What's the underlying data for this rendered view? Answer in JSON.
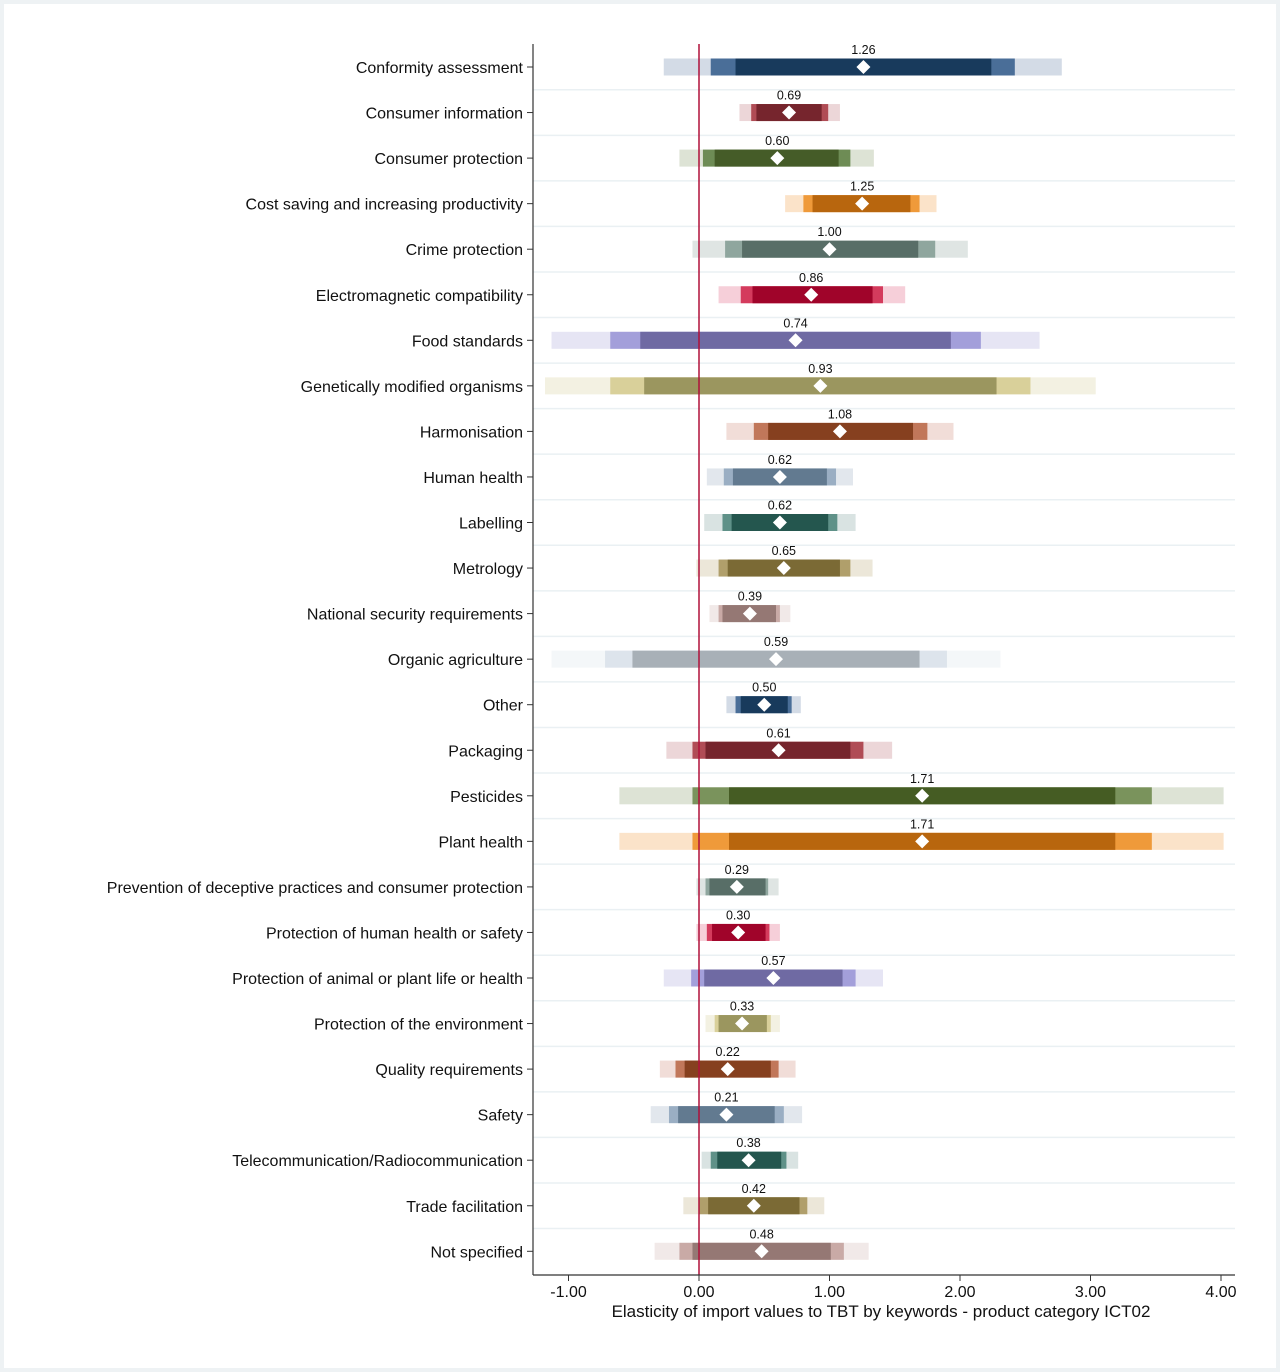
{
  "chart_data": {
    "type": "forest",
    "title": "",
    "xlabel": "Elasticity of import values to TBT by keywords - product category ICT02",
    "ylabel": "",
    "xlim": [
      -1.27,
      4.1
    ],
    "xticks": [
      -1,
      0,
      1,
      2,
      3,
      4
    ],
    "xtick_labels": [
      "-1.00",
      "0.00",
      "1.00",
      "2.00",
      "3.00",
      "4.00"
    ],
    "reference_line": 0,
    "grid": "horizontal",
    "legend": "none",
    "series": [
      {
        "name": "Conformity assessment",
        "estimate": 1.26,
        "label": "1.26",
        "ci_outer": [
          -0.27,
          2.78
        ],
        "ci_mid": [
          0.09,
          2.42
        ],
        "ci_inner": [
          0.28,
          2.24
        ],
        "colors": [
          "#d3dbe6",
          "#4a6e98",
          "#183a5c"
        ]
      },
      {
        "name": "Consumer information",
        "estimate": 0.69,
        "label": "0.69",
        "ci_outer": [
          0.31,
          1.08
        ],
        "ci_mid": [
          0.4,
          0.99
        ],
        "ci_inner": [
          0.44,
          0.94
        ],
        "colors": [
          "#ecd6d8",
          "#b04c55",
          "#76252d"
        ]
      },
      {
        "name": "Consumer protection",
        "estimate": 0.6,
        "label": "0.60",
        "ci_outer": [
          -0.15,
          1.34
        ],
        "ci_mid": [
          0.03,
          1.16
        ],
        "ci_inner": [
          0.12,
          1.07
        ],
        "colors": [
          "#dde3d5",
          "#6e8c55",
          "#455c28"
        ]
      },
      {
        "name": "Cost saving and increasing productivity",
        "estimate": 1.25,
        "label": "1.25",
        "ci_outer": [
          0.66,
          1.82
        ],
        "ci_mid": [
          0.8,
          1.69
        ],
        "ci_inner": [
          0.87,
          1.62
        ],
        "colors": [
          "#fbe3c9",
          "#ef9a3a",
          "#b8660e"
        ]
      },
      {
        "name": "Crime protection",
        "estimate": 1.0,
        "label": "1.00",
        "ci_outer": [
          -0.05,
          2.06
        ],
        "ci_mid": [
          0.2,
          1.81
        ],
        "ci_inner": [
          0.33,
          1.68
        ],
        "colors": [
          "#dfe5e3",
          "#8fa69e",
          "#586e67"
        ]
      },
      {
        "name": "Electromagnetic compatibility",
        "estimate": 0.86,
        "label": "0.86",
        "ci_outer": [
          0.15,
          1.58
        ],
        "ci_mid": [
          0.32,
          1.41
        ],
        "ci_inner": [
          0.41,
          1.33
        ],
        "colors": [
          "#f6cfd9",
          "#d43b5d",
          "#a0042a"
        ]
      },
      {
        "name": "Food standards",
        "estimate": 0.74,
        "label": "0.74",
        "ci_outer": [
          -1.13,
          2.61
        ],
        "ci_mid": [
          -0.68,
          2.16
        ],
        "ci_inner": [
          -0.45,
          1.93
        ],
        "colors": [
          "#e6e5f4",
          "#a39fda",
          "#6f6aa3"
        ]
      },
      {
        "name": "Genetically modified organisms",
        "estimate": 0.93,
        "label": "0.93",
        "ci_outer": [
          -1.18,
          3.04
        ],
        "ci_mid": [
          -0.68,
          2.54
        ],
        "ci_inner": [
          -0.42,
          2.28
        ],
        "colors": [
          "#f3f1e2",
          "#d9d09a",
          "#9b965f"
        ]
      },
      {
        "name": "Harmonisation",
        "estimate": 1.08,
        "label": "1.08",
        "ci_outer": [
          0.21,
          1.95
        ],
        "ci_mid": [
          0.42,
          1.75
        ],
        "ci_inner": [
          0.53,
          1.64
        ],
        "colors": [
          "#f1ddd8",
          "#c1775a",
          "#86401f"
        ]
      },
      {
        "name": "Human health",
        "estimate": 0.62,
        "label": "0.62",
        "ci_outer": [
          0.06,
          1.18
        ],
        "ci_mid": [
          0.19,
          1.05
        ],
        "ci_inner": [
          0.26,
          0.98
        ],
        "colors": [
          "#e2e7ed",
          "#9aaec3",
          "#627a90"
        ]
      },
      {
        "name": "Labelling",
        "estimate": 0.62,
        "label": "0.62",
        "ci_outer": [
          0.04,
          1.2
        ],
        "ci_mid": [
          0.18,
          1.06
        ],
        "ci_inner": [
          0.25,
          0.99
        ],
        "colors": [
          "#d9e3e2",
          "#5f9188",
          "#24564e"
        ]
      },
      {
        "name": "Metrology",
        "estimate": 0.65,
        "label": "0.65",
        "ci_outer": [
          -0.02,
          1.33
        ],
        "ci_mid": [
          0.15,
          1.16
        ],
        "ci_inner": [
          0.22,
          1.08
        ],
        "colors": [
          "#ece7d9",
          "#b09f6b",
          "#7b6a35"
        ]
      },
      {
        "name": "National security requirements",
        "estimate": 0.39,
        "label": "0.39",
        "ci_outer": [
          0.08,
          0.7
        ],
        "ci_mid": [
          0.15,
          0.62
        ],
        "ci_inner": [
          0.18,
          0.59
        ],
        "colors": [
          "#f1e9e8",
          "#c9aaa6",
          "#957874"
        ]
      },
      {
        "name": "Organic agriculture",
        "estimate": 0.59,
        "label": "0.59",
        "ci_outer": [
          -1.13,
          2.31
        ],
        "ci_mid": [
          -0.72,
          1.9
        ],
        "ci_inner": [
          -0.51,
          1.69
        ],
        "colors": [
          "#f4f7f9",
          "#dde4ec",
          "#a8b0b7"
        ]
      },
      {
        "name": "Other",
        "estimate": 0.5,
        "label": "0.50",
        "ci_outer": [
          0.21,
          0.78
        ],
        "ci_mid": [
          0.28,
          0.71
        ],
        "ci_inner": [
          0.32,
          0.68
        ],
        "colors": [
          "#d3dbe6",
          "#4a6e98",
          "#183a5c"
        ]
      },
      {
        "name": "Packaging",
        "estimate": 0.61,
        "label": "0.61",
        "ci_outer": [
          -0.25,
          1.48
        ],
        "ci_mid": [
          -0.05,
          1.26
        ],
        "ci_inner": [
          0.05,
          1.16
        ],
        "colors": [
          "#ecd6d8",
          "#b04c55",
          "#76252d"
        ]
      },
      {
        "name": "Pesticides",
        "estimate": 1.71,
        "label": "1.71",
        "ci_outer": [
          -0.61,
          4.02
        ],
        "ci_mid": [
          -0.05,
          3.47
        ],
        "ci_inner": [
          0.23,
          3.19
        ],
        "colors": [
          "#dde3d5",
          "#7a935c",
          "#455c23"
        ]
      },
      {
        "name": "Plant health",
        "estimate": 1.71,
        "label": "1.71",
        "ci_outer": [
          -0.61,
          4.02
        ],
        "ci_mid": [
          -0.05,
          3.47
        ],
        "ci_inner": [
          0.23,
          3.19
        ],
        "colors": [
          "#fbe3c9",
          "#ef9a3a",
          "#b8660e"
        ]
      },
      {
        "name": "Prevention of deceptive practices and consumer protection",
        "estimate": 0.29,
        "label": "0.29",
        "ci_outer": [
          -0.02,
          0.61
        ],
        "ci_mid": [
          0.05,
          0.53
        ],
        "ci_inner": [
          0.08,
          0.51
        ],
        "colors": [
          "#dfe5e3",
          "#8fa69e",
          "#586e67"
        ]
      },
      {
        "name": "Protection of human health or safety",
        "estimate": 0.3,
        "label": "0.30",
        "ci_outer": [
          -0.02,
          0.62
        ],
        "ci_mid": [
          0.06,
          0.54
        ],
        "ci_inner": [
          0.1,
          0.51
        ],
        "colors": [
          "#f6cfd9",
          "#d43b5d",
          "#a0042a"
        ]
      },
      {
        "name": "Protection of animal or plant life or health",
        "estimate": 0.57,
        "label": "0.57",
        "ci_outer": [
          -0.27,
          1.41
        ],
        "ci_mid": [
          -0.06,
          1.2
        ],
        "ci_inner": [
          0.04,
          1.1
        ],
        "colors": [
          "#e6e5f4",
          "#a39fda",
          "#6f6aa3"
        ]
      },
      {
        "name": "Protection of the environment",
        "estimate": 0.33,
        "label": "0.33",
        "ci_outer": [
          0.05,
          0.62
        ],
        "ci_mid": [
          0.12,
          0.55
        ],
        "ci_inner": [
          0.15,
          0.52
        ],
        "colors": [
          "#f3f1e2",
          "#d9d09a",
          "#9b965f"
        ]
      },
      {
        "name": "Quality requirements",
        "estimate": 0.22,
        "label": "0.22",
        "ci_outer": [
          -0.3,
          0.74
        ],
        "ci_mid": [
          -0.18,
          0.61
        ],
        "ci_inner": [
          -0.11,
          0.55
        ],
        "colors": [
          "#f1ddd8",
          "#c1775a",
          "#86401f"
        ]
      },
      {
        "name": "Safety",
        "estimate": 0.21,
        "label": "0.21",
        "ci_outer": [
          -0.37,
          0.79
        ],
        "ci_mid": [
          -0.23,
          0.65
        ],
        "ci_inner": [
          -0.16,
          0.58
        ],
        "colors": [
          "#e2e7ed",
          "#9aaec3",
          "#627a90"
        ]
      },
      {
        "name": "Telecommunication/Radiocommunication",
        "estimate": 0.38,
        "label": "0.38",
        "ci_outer": [
          0.02,
          0.76
        ],
        "ci_mid": [
          0.09,
          0.67
        ],
        "ci_inner": [
          0.14,
          0.63
        ],
        "colors": [
          "#d9e3e2",
          "#5f9188",
          "#24564e"
        ]
      },
      {
        "name": "Trade facilitation",
        "estimate": 0.42,
        "label": "0.42",
        "ci_outer": [
          -0.12,
          0.96
        ],
        "ci_mid": [
          0.0,
          0.83
        ],
        "ci_inner": [
          0.07,
          0.77
        ],
        "colors": [
          "#ece7d9",
          "#b09f6b",
          "#7b6a35"
        ]
      },
      {
        "name": "Not specified",
        "estimate": 0.48,
        "label": "0.48",
        "ci_outer": [
          -0.34,
          1.3
        ],
        "ci_mid": [
          -0.15,
          1.11
        ],
        "ci_inner": [
          -0.05,
          1.01
        ],
        "colors": [
          "#f1e9e8",
          "#c9aaa6",
          "#957874"
        ]
      }
    ],
    "colors": {
      "reference_line": "#b0103a",
      "axis": "#333333",
      "grid": "#eaf0f3",
      "marker": "#ffffff"
    }
  }
}
